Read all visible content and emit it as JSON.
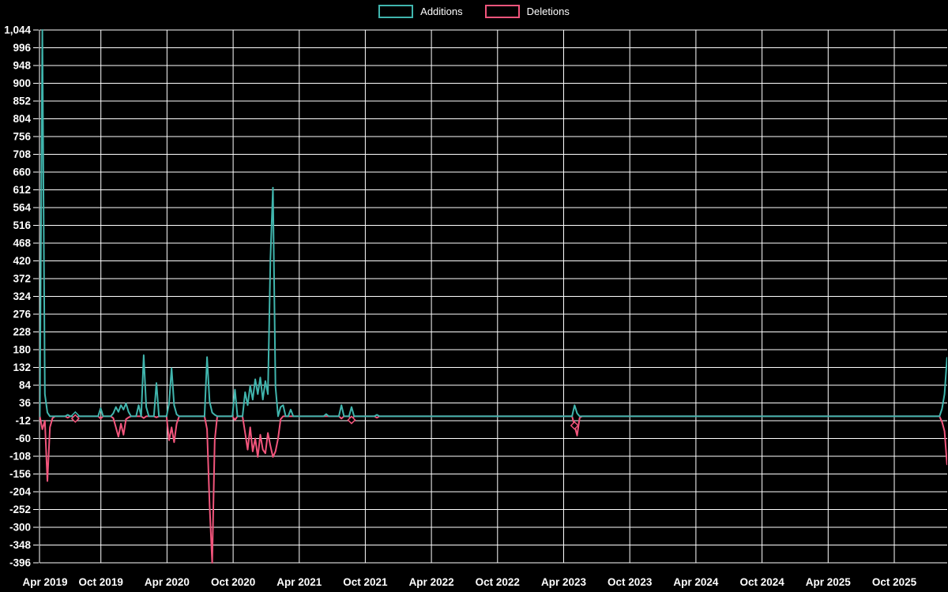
{
  "legend": {
    "items": [
      {
        "label": "Additions",
        "color": "#40b5ad"
      },
      {
        "label": "Deletions",
        "color": "#f2557c"
      }
    ]
  },
  "chart_data": {
    "type": "line",
    "title": "",
    "background": "#000000",
    "grid_color": "#ffffff",
    "text_color": "#ffffff",
    "legend_position": "top-center",
    "grid": true,
    "ylim": [
      -396,
      1044
    ],
    "y_tick_step": 48,
    "y_ticks": [
      -396,
      -348,
      -300,
      -252,
      -204,
      -156,
      -108,
      -60,
      -12,
      36,
      84,
      132,
      180,
      228,
      276,
      324,
      372,
      420,
      468,
      516,
      564,
      612,
      660,
      708,
      756,
      804,
      852,
      900,
      948,
      996,
      1044
    ],
    "y_tick_labels": [
      "-396",
      "-348",
      "-300",
      "-252",
      "-204",
      "-156",
      "-108",
      "-60",
      "-12",
      "36",
      "84",
      "132",
      "180",
      "228",
      "276",
      "324",
      "372",
      "420",
      "468",
      "516",
      "564",
      "612",
      "660",
      "708",
      "756",
      "804",
      "852",
      "900",
      "948",
      "996",
      "1,044"
    ],
    "x_tick_labels": [
      "Apr 2019",
      "Oct 2019",
      "Apr 2020",
      "Oct 2020",
      "Apr 2021",
      "Oct 2021",
      "Apr 2022",
      "Oct 2022",
      "Apr 2023",
      "Oct 2023",
      "Apr 2024",
      "Oct 2024",
      "Apr 2025",
      "Oct 2025"
    ],
    "weeks_per_tick": 26.089,
    "total_weeks": 360,
    "baseline_value": 0,
    "series": [
      {
        "name": "Additions",
        "color": "#40b5ad",
        "marker_weeks": [
          16
        ],
        "points": [
          [
            3,
            1044
          ],
          [
            4,
            60
          ],
          [
            5,
            10
          ],
          [
            13,
            4
          ],
          [
            16,
            2
          ],
          [
            26,
            22
          ],
          [
            31,
            8
          ],
          [
            32,
            25
          ],
          [
            33,
            12
          ],
          [
            34,
            30
          ],
          [
            35,
            18
          ],
          [
            36,
            35
          ],
          [
            37,
            12
          ],
          [
            41,
            30
          ],
          [
            43,
            165
          ],
          [
            44,
            25
          ],
          [
            48,
            90
          ],
          [
            53,
            35
          ],
          [
            54,
            130
          ],
          [
            55,
            30
          ],
          [
            56,
            5
          ],
          [
            68,
            160
          ],
          [
            69,
            40
          ],
          [
            70,
            10
          ],
          [
            71,
            4
          ],
          [
            79,
            72
          ],
          [
            83,
            65
          ],
          [
            84,
            30
          ],
          [
            85,
            83
          ],
          [
            86,
            45
          ],
          [
            87,
            100
          ],
          [
            88,
            60
          ],
          [
            89,
            105
          ],
          [
            90,
            45
          ],
          [
            91,
            95
          ],
          [
            92,
            60
          ],
          [
            93,
            425
          ],
          [
            94,
            618
          ],
          [
            95,
            80
          ],
          [
            97,
            25
          ],
          [
            98,
            30
          ],
          [
            101,
            18
          ],
          [
            115,
            6
          ],
          [
            121,
            30
          ],
          [
            125,
            25
          ],
          [
            135,
            4
          ],
          [
            213,
            30
          ],
          [
            214,
            8
          ],
          [
            358,
            20
          ],
          [
            359,
            60
          ],
          [
            360,
            158
          ]
        ]
      },
      {
        "name": "Deletions",
        "color": "#f2557c",
        "marker_weeks": [
          16,
          125,
          213
        ],
        "points": [
          [
            3,
            -35
          ],
          [
            4,
            -12
          ],
          [
            5,
            -175
          ],
          [
            6,
            -30
          ],
          [
            7,
            -5
          ],
          [
            13,
            -4
          ],
          [
            16,
            -6
          ],
          [
            26,
            -6
          ],
          [
            31,
            -5
          ],
          [
            32,
            -30
          ],
          [
            33,
            -55
          ],
          [
            34,
            -20
          ],
          [
            35,
            -50
          ],
          [
            36,
            -8
          ],
          [
            37,
            -3
          ],
          [
            43,
            -5
          ],
          [
            48,
            -3
          ],
          [
            53,
            -65
          ],
          [
            54,
            -30
          ],
          [
            55,
            -70
          ],
          [
            56,
            -20
          ],
          [
            68,
            -35
          ],
          [
            69,
            -240
          ],
          [
            70,
            -396
          ],
          [
            71,
            -65
          ],
          [
            79,
            -10
          ],
          [
            83,
            -45
          ],
          [
            84,
            -90
          ],
          [
            85,
            -30
          ],
          [
            86,
            -95
          ],
          [
            87,
            -60
          ],
          [
            88,
            -110
          ],
          [
            89,
            -50
          ],
          [
            90,
            -90
          ],
          [
            91,
            -100
          ],
          [
            92,
            -45
          ],
          [
            93,
            -80
          ],
          [
            94,
            -110
          ],
          [
            95,
            -95
          ],
          [
            96,
            -60
          ],
          [
            97,
            -8
          ],
          [
            121,
            -6
          ],
          [
            125,
            -10
          ],
          [
            135,
            -4
          ],
          [
            213,
            -25
          ],
          [
            214,
            -52
          ],
          [
            215,
            -4
          ],
          [
            358,
            -15
          ],
          [
            359,
            -40
          ],
          [
            360,
            -130
          ]
        ]
      }
    ]
  }
}
